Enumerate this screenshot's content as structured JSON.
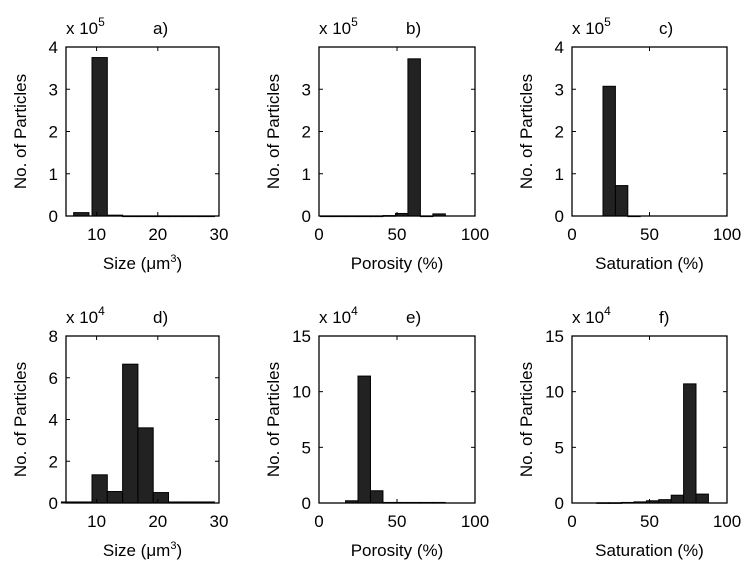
{
  "chart_data": [
    {
      "type": "bar",
      "panel_label": "a)",
      "multiplier_label": "x 10",
      "multiplier_exp": "5",
      "scale": 100000,
      "xlabel": "Size (μm",
      "xlabel_sup": "3",
      "xlabel_tail": ")",
      "ylabel": "No. of Particles",
      "xlim": [
        5,
        30
      ],
      "ylim": [
        0,
        4
      ],
      "xticks": [
        "10",
        "20",
        "30"
      ],
      "xtick_values": [
        10,
        20,
        30
      ],
      "yticks": [
        "0",
        "1",
        "2",
        "3",
        "4"
      ],
      "ytick_values": [
        0,
        1,
        2,
        3,
        4
      ],
      "bin_width": 2.5,
      "x": [
        7.5,
        10.5,
        13.0,
        15.5,
        18.0,
        20.5,
        23.0,
        25.5,
        28.0
      ],
      "values": [
        0.08,
        3.75,
        0.02,
        0,
        0,
        0,
        0,
        0,
        0
      ]
    },
    {
      "type": "bar",
      "panel_label": "b)",
      "multiplier_label": "x 10",
      "multiplier_exp": "5",
      "scale": 100000,
      "xlabel": "Porosity (%)",
      "xlabel_sup": "",
      "xlabel_tail": "",
      "ylabel": "No. of Particles",
      "xlim": [
        0,
        100
      ],
      "ylim": [
        0,
        4
      ],
      "xticks": [
        "0",
        "50",
        "100"
      ],
      "xtick_values": [
        0,
        50,
        100
      ],
      "yticks": [
        "0",
        "1",
        "2",
        "3"
      ],
      "ytick_values": [
        0,
        1,
        2,
        3
      ],
      "bin_width": 8,
      "x": [
        5,
        13,
        21,
        29,
        37,
        45,
        53,
        61,
        69,
        77
      ],
      "values": [
        0,
        0,
        0,
        0,
        0,
        0.01,
        0.06,
        3.72,
        0,
        0.05
      ]
    },
    {
      "type": "bar",
      "panel_label": "c)",
      "multiplier_label": "x 10",
      "multiplier_exp": "5",
      "scale": 100000,
      "xlabel": "Saturation (%)",
      "xlabel_sup": "",
      "xlabel_tail": "",
      "ylabel": "No. of Particles",
      "xlim": [
        0,
        100
      ],
      "ylim": [
        0,
        4
      ],
      "xticks": [
        "0",
        "50",
        "100"
      ],
      "xtick_values": [
        0,
        50,
        100
      ],
      "yticks": [
        "0",
        "1",
        "2",
        "3",
        "4"
      ],
      "ytick_values": [
        0,
        1,
        2,
        3,
        4
      ],
      "bin_width": 8,
      "x": [
        24,
        32,
        40
      ],
      "values": [
        3.07,
        0.72,
        0
      ]
    },
    {
      "type": "bar",
      "panel_label": "d)",
      "multiplier_label": "x 10",
      "multiplier_exp": "4",
      "scale": 10000,
      "xlabel": "Size (μm",
      "xlabel_sup": "3",
      "xlabel_tail": ")",
      "ylabel": "No. of Particles",
      "xlim": [
        5,
        30
      ],
      "ylim": [
        0,
        8
      ],
      "xticks": [
        "10",
        "20",
        "30"
      ],
      "xtick_values": [
        10,
        20,
        30
      ],
      "yticks": [
        "0",
        "2",
        "4",
        "6",
        "8"
      ],
      "ytick_values": [
        0,
        2,
        4,
        6,
        8
      ],
      "bin_width": 2.5,
      "x": [
        5.5,
        8.0,
        10.5,
        13.0,
        15.5,
        18.0,
        20.5,
        23.0,
        25.5,
        28.0
      ],
      "values": [
        0.05,
        0.05,
        1.35,
        0.55,
        6.65,
        3.6,
        0.5,
        0.05,
        0.05,
        0.05
      ]
    },
    {
      "type": "bar",
      "panel_label": "e)",
      "multiplier_label": "x 10",
      "multiplier_exp": "4",
      "scale": 10000,
      "xlabel": "Porosity (%)",
      "xlabel_sup": "",
      "xlabel_tail": "",
      "ylabel": "No. of Particles",
      "xlim": [
        0,
        100
      ],
      "ylim": [
        0,
        15
      ],
      "xticks": [
        "0",
        "50",
        "100"
      ],
      "xtick_values": [
        0,
        50,
        100
      ],
      "yticks": [
        "0",
        "5",
        "10",
        "15"
      ],
      "ytick_values": [
        0,
        5,
        10,
        15
      ],
      "bin_width": 8,
      "x": [
        21,
        29,
        37,
        45,
        53,
        61,
        69,
        77
      ],
      "values": [
        0.2,
        11.4,
        1.1,
        0.05,
        0.05,
        0.05,
        0.05,
        0.05
      ]
    },
    {
      "type": "bar",
      "panel_label": "f)",
      "multiplier_label": "x 10",
      "multiplier_exp": "4",
      "scale": 10000,
      "xlabel": "Saturation (%)",
      "xlabel_sup": "",
      "xlabel_tail": "",
      "ylabel": "No. of Particles",
      "xlim": [
        0,
        100
      ],
      "ylim": [
        0,
        15
      ],
      "xticks": [
        "0",
        "50",
        "100"
      ],
      "xtick_values": [
        0,
        50,
        100
      ],
      "yticks": [
        "0",
        "5",
        "10",
        "15"
      ],
      "ytick_values": [
        0,
        5,
        10,
        15
      ],
      "bin_width": 8,
      "x": [
        20,
        28,
        36,
        44,
        52,
        60,
        68,
        76,
        84
      ],
      "values": [
        0.02,
        0.02,
        0.05,
        0.1,
        0.2,
        0.3,
        0.7,
        10.7,
        0.8
      ]
    }
  ]
}
